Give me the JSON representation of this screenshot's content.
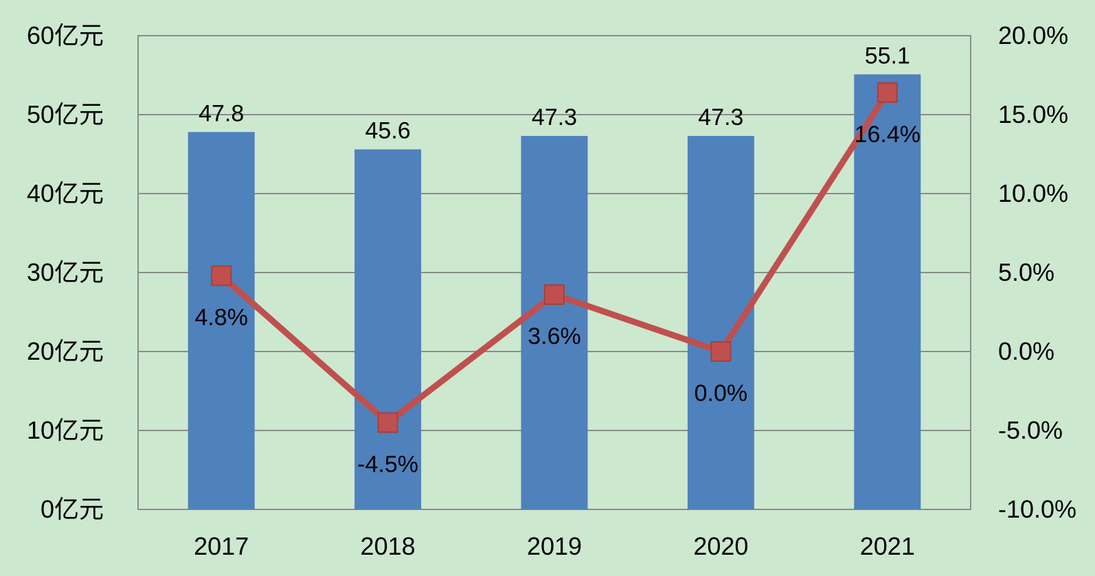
{
  "chart_data": {
    "type": "bar+line",
    "categories": [
      "2017",
      "2018",
      "2019",
      "2020",
      "2021"
    ],
    "series": [
      {
        "type": "bar",
        "axis": "left",
        "values": [
          47.8,
          45.6,
          47.3,
          47.3,
          55.1
        ],
        "labels": [
          "47.8",
          "45.6",
          "47.3",
          "47.3",
          "55.1"
        ]
      },
      {
        "type": "line",
        "axis": "right",
        "values": [
          4.8,
          -4.5,
          3.6,
          0.0,
          16.4
        ],
        "labels": [
          "4.8%",
          "-4.5%",
          "3.6%",
          "0.0%",
          "16.4%"
        ]
      }
    ],
    "y_left": {
      "range": [
        0,
        60
      ],
      "ticks": [
        "0亿元",
        "10亿元",
        "20亿元",
        "30亿元",
        "40亿元",
        "50亿元",
        "60亿元"
      ]
    },
    "y_right": {
      "range": [
        -10,
        20
      ],
      "ticks": [
        "-10.0%",
        "-5.0%",
        "0.0%",
        "5.0%",
        "10.0%",
        "15.0%",
        "20.0%"
      ]
    },
    "grid": true,
    "legend": "none",
    "colors": {
      "background": "#cce8cf",
      "bar": "#4f81bd",
      "line": "#c0504d",
      "grid": "#8c8c8c"
    }
  }
}
